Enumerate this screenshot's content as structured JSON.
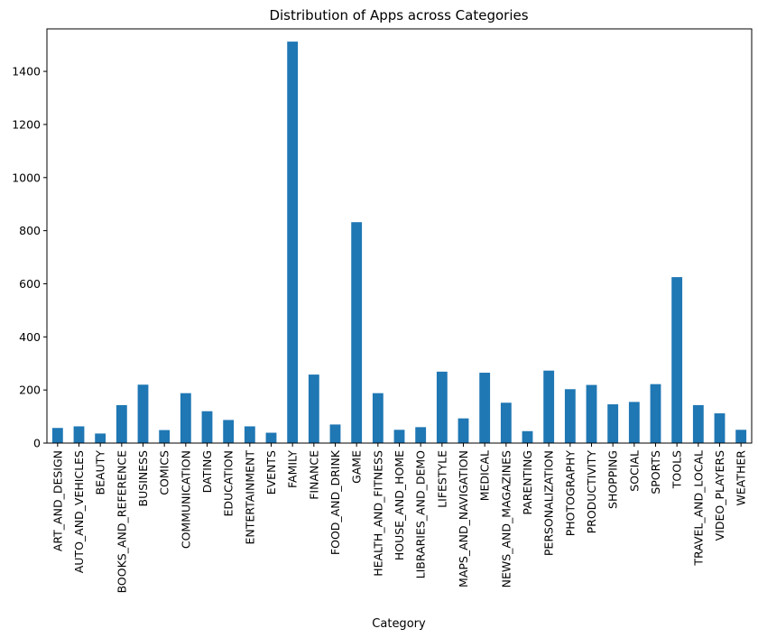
{
  "chart_data": {
    "type": "bar",
    "title": "Distribution of Apps across Categories",
    "xlabel": "Category",
    "ylabel": "",
    "ylim": [
      0,
      1560
    ],
    "yticks": [
      0,
      200,
      400,
      600,
      800,
      1000,
      1200,
      1400
    ],
    "grid": false,
    "legend": "none",
    "bar_color": "#1f77b4",
    "categories": [
      "ART_AND_DESIGN",
      "AUTO_AND_VEHICLES",
      "BEAUTY",
      "BOOKS_AND_REFERENCE",
      "BUSINESS",
      "COMICS",
      "COMMUNICATION",
      "DATING",
      "EDUCATION",
      "ENTERTAINMENT",
      "EVENTS",
      "FAMILY",
      "FINANCE",
      "FOOD_AND_DRINK",
      "GAME",
      "HEALTH_AND_FITNESS",
      "HOUSE_AND_HOME",
      "LIBRARIES_AND_DEMO",
      "LIFESTYLE",
      "MAPS_AND_NAVIGATION",
      "MEDICAL",
      "NEWS_AND_MAGAZINES",
      "PARENTING",
      "PERSONALIZATION",
      "PHOTOGRAPHY",
      "PRODUCTIVITY",
      "SHOPPING",
      "SOCIAL",
      "SPORTS",
      "TOOLS",
      "TRAVEL_AND_LOCAL",
      "VIDEO_PLAYERS",
      "WEATHER"
    ],
    "values": [
      57,
      63,
      36,
      143,
      220,
      49,
      188,
      120,
      87,
      63,
      39,
      1512,
      258,
      70,
      832,
      188,
      50,
      60,
      269,
      93,
      265,
      152,
      45,
      273,
      203,
      219,
      146,
      155,
      222,
      625,
      143,
      112,
      50
    ]
  }
}
